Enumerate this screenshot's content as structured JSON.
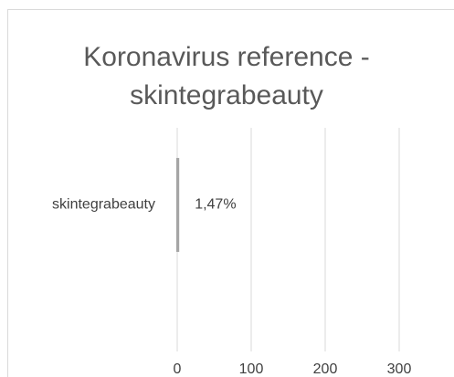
{
  "chart_data": {
    "type": "bar",
    "orientation": "horizontal",
    "title": "Koronavirus reference - skintegrabeauty",
    "categories": [
      "skintegrabeauty"
    ],
    "values": [
      1.47
    ],
    "value_labels": [
      "1,47%"
    ],
    "color": "#a5a5a5",
    "xlim": [
      0,
      300
    ],
    "xticks": [
      0,
      100,
      200,
      300
    ],
    "grid": true
  }
}
